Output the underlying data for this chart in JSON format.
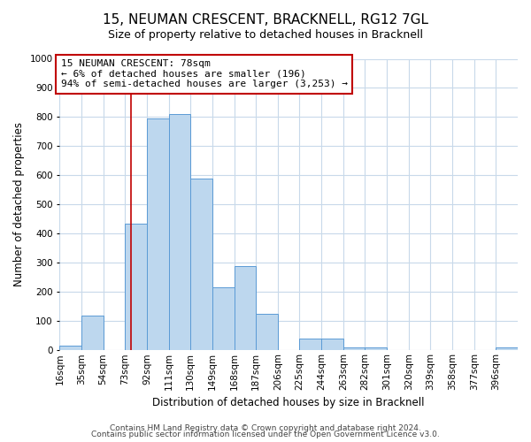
{
  "title": "15, NEUMAN CRESCENT, BRACKNELL, RG12 7GL",
  "subtitle": "Size of property relative to detached houses in Bracknell",
  "bar_labels": [
    "16sqm",
    "35sqm",
    "54sqm",
    "73sqm",
    "92sqm",
    "111sqm",
    "130sqm",
    "149sqm",
    "168sqm",
    "187sqm",
    "206sqm",
    "225sqm",
    "244sqm",
    "263sqm",
    "282sqm",
    "301sqm",
    "320sqm",
    "339sqm",
    "358sqm",
    "377sqm",
    "396sqm"
  ],
  "bar_values": [
    15,
    120,
    0,
    435,
    795,
    810,
    590,
    215,
    290,
    125,
    0,
    40,
    40,
    10,
    10,
    0,
    0,
    0,
    0,
    0,
    10
  ],
  "bin_edges": [
    16,
    35,
    54,
    73,
    92,
    111,
    130,
    149,
    168,
    187,
    206,
    225,
    244,
    263,
    282,
    301,
    320,
    339,
    358,
    377,
    396
  ],
  "bar_color": "#bdd7ee",
  "bar_edge_color": "#5b9bd5",
  "ylim": [
    0,
    1000
  ],
  "yticks": [
    0,
    100,
    200,
    300,
    400,
    500,
    600,
    700,
    800,
    900,
    1000
  ],
  "ylabel": "Number of detached properties",
  "xlabel": "Distribution of detached houses by size in Bracknell",
  "vline_x": 78,
  "vline_color": "#c00000",
  "annotation_text": "15 NEUMAN CRESCENT: 78sqm\n← 6% of detached houses are smaller (196)\n94% of semi-detached houses are larger (3,253) →",
  "annotation_box_color": "#ffffff",
  "annotation_box_edge_color": "#c00000",
  "footer_line1": "Contains HM Land Registry data © Crown copyright and database right 2024.",
  "footer_line2": "Contains public sector information licensed under the Open Government Licence v3.0.",
  "background_color": "#ffffff",
  "grid_color": "#c8d9ea",
  "title_fontsize": 11,
  "subtitle_fontsize": 9,
  "axis_label_fontsize": 8.5,
  "tick_label_fontsize": 7.5,
  "annotation_fontsize": 8,
  "footer_fontsize": 6.5
}
